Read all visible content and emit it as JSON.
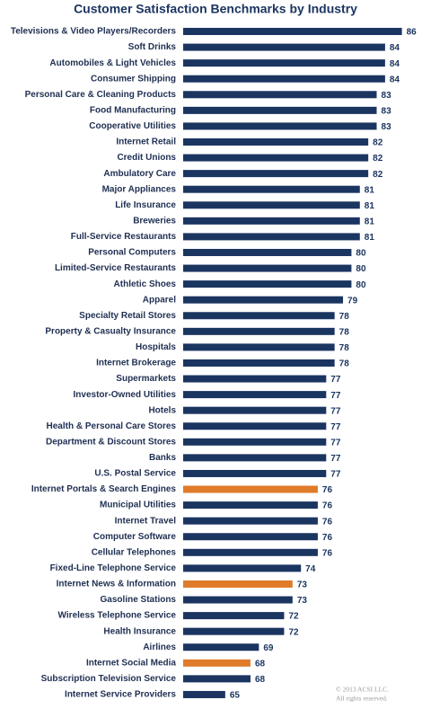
{
  "chart_data": {
    "type": "hbar",
    "title": "Customer Satisfaction Benchmarks by Industry",
    "categories": [
      "Televisions & Video Players/Recorders",
      "Soft Drinks",
      "Automobiles & Light Vehicles",
      "Consumer Shipping",
      "Personal Care & Cleaning Products",
      "Food Manufacturing",
      "Cooperative Utilities",
      "Internet Retail",
      "Credit Unions",
      "Ambulatory Care",
      "Major Appliances",
      "Life Insurance",
      "Breweries",
      "Full-Service Restaurants",
      "Personal Computers",
      "Limited-Service Restaurants",
      "Athletic Shoes",
      "Apparel",
      "Specialty Retail Stores",
      "Property & Casualty Insurance",
      "Hospitals",
      "Internet Brokerage",
      "Supermarkets",
      "Investor-Owned Utilities",
      "Hotels",
      "Health & Personal Care Stores",
      "Department & Discount Stores",
      "Banks",
      "U.S. Postal Service",
      "Internet Portals & Search Engines",
      "Municipal Utilities",
      "Internet Travel",
      "Computer Software",
      "Cellular Telephones",
      "Fixed-Line Telephone Service",
      "Internet News & Information",
      "Gasoline Stations",
      "Wireless Telephone Service",
      "Health Insurance",
      "Airlines",
      "Internet Social Media",
      "Subscription Television Service",
      "Internet Service Providers"
    ],
    "values": [
      86,
      84,
      84,
      84,
      83,
      83,
      83,
      82,
      82,
      82,
      81,
      81,
      81,
      81,
      80,
      80,
      80,
      79,
      78,
      78,
      78,
      78,
      77,
      77,
      77,
      77,
      77,
      77,
      77,
      76,
      76,
      76,
      76,
      76,
      74,
      73,
      73,
      72,
      72,
      69,
      68,
      68,
      65
    ],
    "colors": [
      "#1b3561",
      "#1b3561",
      "#1b3561",
      "#1b3561",
      "#1b3561",
      "#1b3561",
      "#1b3561",
      "#1b3561",
      "#1b3561",
      "#1b3561",
      "#1b3561",
      "#1b3561",
      "#1b3561",
      "#1b3561",
      "#1b3561",
      "#1b3561",
      "#1b3561",
      "#1b3561",
      "#1b3561",
      "#1b3561",
      "#1b3561",
      "#1b3561",
      "#1b3561",
      "#1b3561",
      "#1b3561",
      "#1b3561",
      "#1b3561",
      "#1b3561",
      "#1b3561",
      "#e07b2a",
      "#1b3561",
      "#1b3561",
      "#1b3561",
      "#1b3561",
      "#1b3561",
      "#e07b2a",
      "#1b3561",
      "#1b3561",
      "#1b3561",
      "#1b3561",
      "#e07b2a",
      "#1b3561",
      "#1b3561"
    ],
    "xlim": [
      60,
      87
    ],
    "footnote": [
      "© 2013 ACSI LLC.",
      "All rights reserved."
    ]
  }
}
